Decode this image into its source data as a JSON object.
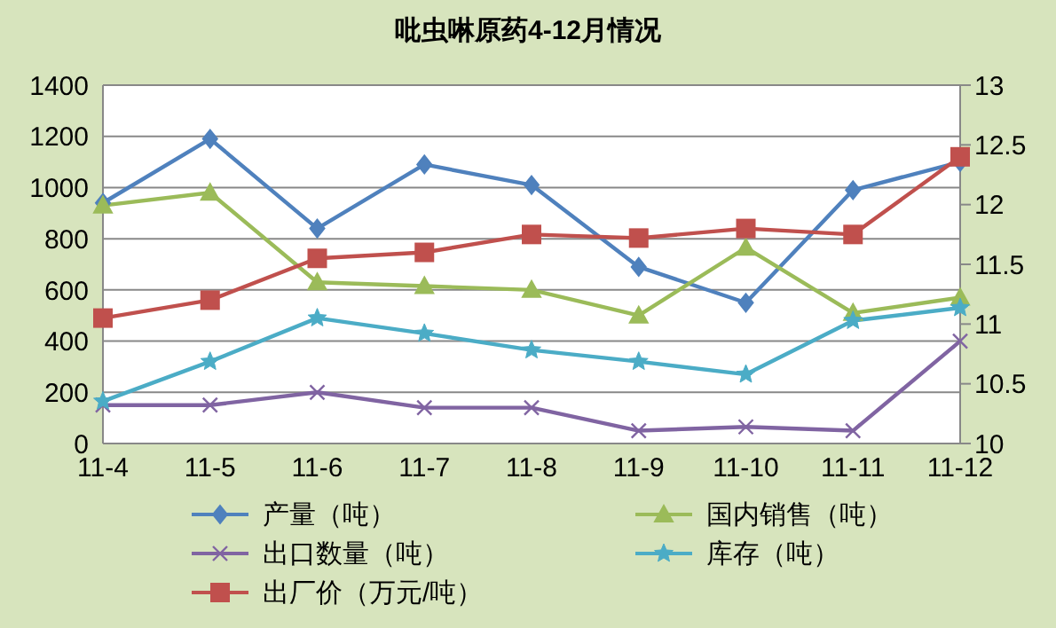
{
  "chart_data": {
    "type": "line",
    "title": "吡虫啉原药4-12月情况",
    "categories": [
      "11-4",
      "11-5",
      "11-6",
      "11-7",
      "11-8",
      "11-9",
      "11-10",
      "11-11",
      "11-12"
    ],
    "series": [
      {
        "name": "产量（吨）",
        "color": "#4f81bd",
        "marker": "diamond",
        "values": [
          940,
          1190,
          840,
          1090,
          1010,
          690,
          550,
          990,
          1100
        ]
      },
      {
        "name": "国内销售（吨）",
        "color": "#9bbb59",
        "marker": "triangle",
        "values": [
          930,
          980,
          630,
          615,
          600,
          500,
          765,
          510,
          570
        ]
      },
      {
        "name": "出口数量（吨）",
        "color": "#8064a2",
        "marker": "cross",
        "values": [
          150,
          150,
          200,
          140,
          140,
          50,
          65,
          50,
          400
        ]
      },
      {
        "name": "库存（吨）",
        "color": "#4bacc6",
        "marker": "star",
        "values": [
          165,
          320,
          490,
          430,
          365,
          320,
          270,
          480,
          530
        ]
      },
      {
        "name": "出厂价（万元/吨）",
        "color": "#c0504d",
        "marker": "square",
        "axis": "y2",
        "values": [
          11.05,
          11.2,
          11.55,
          11.6,
          11.75,
          11.72,
          11.8,
          11.75,
          12.4
        ]
      }
    ],
    "ylim": [
      0,
      1400
    ],
    "yticks": [
      0,
      200,
      400,
      600,
      800,
      1000,
      1200,
      1400
    ],
    "y2lim": [
      10,
      13
    ],
    "y2ticks": [
      10,
      10.5,
      11,
      11.5,
      12,
      12.5,
      13
    ],
    "grid": "y",
    "legend": "bottom",
    "line_style": "solid"
  }
}
